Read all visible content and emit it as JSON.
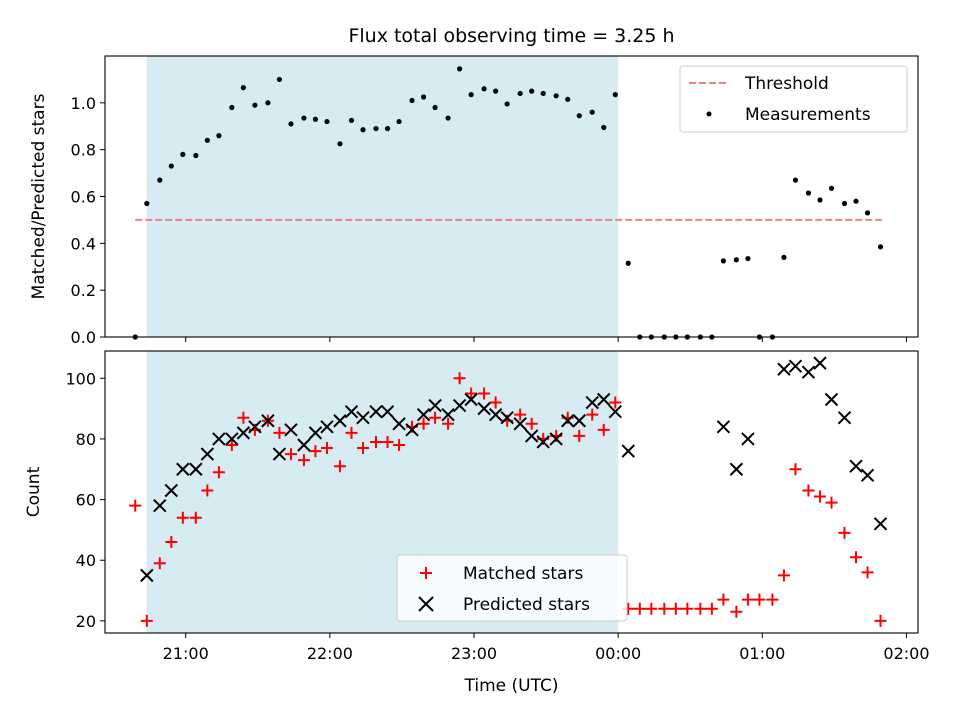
{
  "title": "Flux total observing time = 3.25 h",
  "x_axis_label": "Time (UTC)",
  "x_ticks": [
    {
      "t": 21.0,
      "label": "21:00"
    },
    {
      "t": 22.0,
      "label": "22:00"
    },
    {
      "t": 23.0,
      "label": "23:00"
    },
    {
      "t": 24.0,
      "label": "00:00"
    },
    {
      "t": 25.0,
      "label": "01:00"
    },
    {
      "t": 26.0,
      "label": "02:00"
    }
  ],
  "x_range": [
    20.44,
    26.08
  ],
  "chart_data": [
    {
      "type": "scatter",
      "panel": "top",
      "ylabel": "Matched/Predicted stars",
      "ylim": [
        0,
        1.2
      ],
      "yticks": [
        0.0,
        0.2,
        0.4,
        0.6,
        0.8,
        1.0
      ],
      "ytick_labels": [
        "0.0",
        "0.2",
        "0.4",
        "0.6",
        "0.8",
        "1.0"
      ],
      "observing_window": {
        "start": 20.73,
        "end": 24.0,
        "color": "#add8e6"
      },
      "threshold": {
        "name": "Threshold",
        "value": 0.5,
        "start": 20.65,
        "end": 25.83,
        "color": "#f08080"
      },
      "legend_position": "upper right",
      "series": [
        {
          "name": "Measurements",
          "color": "#000000",
          "x": [
            20.65,
            20.73,
            20.82,
            20.9,
            20.98,
            21.07,
            21.15,
            21.23,
            21.32,
            21.4,
            21.48,
            21.57,
            21.65,
            21.73,
            21.82,
            21.9,
            21.98,
            22.07,
            22.15,
            22.23,
            22.32,
            22.4,
            22.48,
            22.57,
            22.65,
            22.73,
            22.82,
            22.9,
            22.98,
            23.07,
            23.15,
            23.23,
            23.32,
            23.4,
            23.48,
            23.57,
            23.65,
            23.73,
            23.82,
            23.9,
            23.98,
            24.07,
            24.15,
            24.23,
            24.32,
            24.4,
            24.48,
            24.57,
            24.65,
            24.73,
            24.82,
            24.9,
            24.98,
            25.07,
            25.15,
            25.23,
            25.32,
            25.4,
            25.48,
            25.57,
            25.65,
            25.73,
            25.82
          ],
          "y": [
            0.0,
            0.57,
            0.67,
            0.73,
            0.78,
            0.775,
            0.84,
            0.86,
            0.98,
            1.065,
            0.99,
            1.0,
            1.1,
            0.91,
            0.935,
            0.93,
            0.92,
            0.825,
            0.925,
            0.885,
            0.89,
            0.89,
            0.92,
            1.01,
            1.025,
            0.98,
            0.935,
            1.145,
            1.035,
            1.06,
            1.05,
            0.995,
            1.04,
            1.05,
            1.04,
            1.03,
            1.015,
            0.945,
            0.96,
            0.895,
            1.035,
            0.315,
            0.0,
            0.0,
            0.0,
            0.0,
            0.0,
            0.0,
            0.0,
            0.325,
            0.33,
            0.335,
            0.0,
            0.0,
            0.34,
            0.67,
            0.615,
            0.585,
            0.635,
            0.57,
            0.58,
            0.53,
            0.385
          ]
        }
      ]
    },
    {
      "type": "scatter",
      "panel": "bottom",
      "ylabel": "Count",
      "ylim": [
        16,
        109
      ],
      "yticks": [
        20,
        40,
        60,
        80,
        100
      ],
      "ytick_labels": [
        "20",
        "40",
        "60",
        "80",
        "100"
      ],
      "observing_window": {
        "start": 20.73,
        "end": 24.0,
        "color": "#add8e6"
      },
      "legend_position": "lower center",
      "series": [
        {
          "name": "Matched stars",
          "marker": "plus",
          "color": "#ff0000",
          "x": [
            20.65,
            20.73,
            20.82,
            20.9,
            20.98,
            21.07,
            21.15,
            21.23,
            21.32,
            21.4,
            21.48,
            21.57,
            21.65,
            21.73,
            21.82,
            21.9,
            21.98,
            22.07,
            22.15,
            22.23,
            22.32,
            22.4,
            22.48,
            22.57,
            22.65,
            22.73,
            22.82,
            22.9,
            22.98,
            23.07,
            23.15,
            23.23,
            23.32,
            23.4,
            23.48,
            23.57,
            23.65,
            23.73,
            23.82,
            23.9,
            23.98,
            24.07,
            24.15,
            24.23,
            24.32,
            24.4,
            24.48,
            24.57,
            24.65,
            24.73,
            24.82,
            24.9,
            24.98,
            25.07,
            25.15,
            25.23,
            25.32,
            25.4,
            25.48,
            25.57,
            25.65,
            25.73,
            25.82
          ],
          "y": [
            58,
            20,
            39,
            46,
            54,
            54,
            63,
            69,
            78,
            87,
            83,
            86,
            82,
            75,
            73,
            76,
            77,
            71,
            82,
            77,
            79,
            79,
            78,
            84,
            85,
            87,
            85,
            100,
            95,
            95,
            92,
            86,
            88,
            85,
            80,
            81,
            87,
            81,
            88,
            83,
            92,
            24,
            24,
            24,
            24,
            24,
            24,
            24,
            24,
            27,
            23,
            27,
            27,
            27,
            35,
            70,
            63,
            61,
            59,
            49,
            41,
            36,
            20
          ]
        },
        {
          "name": "Predicted stars",
          "marker": "x",
          "color": "#000000",
          "x": [
            20.73,
            20.82,
            20.9,
            20.98,
            21.07,
            21.15,
            21.23,
            21.32,
            21.4,
            21.48,
            21.57,
            21.65,
            21.73,
            21.82,
            21.9,
            21.98,
            22.07,
            22.15,
            22.23,
            22.32,
            22.4,
            22.48,
            22.57,
            22.65,
            22.73,
            22.82,
            22.9,
            22.98,
            23.07,
            23.15,
            23.23,
            23.32,
            23.4,
            23.48,
            23.57,
            23.65,
            23.73,
            23.82,
            23.9,
            23.98,
            24.07,
            24.73,
            24.82,
            24.9,
            25.15,
            25.23,
            25.32,
            25.4,
            25.48,
            25.57,
            25.65,
            25.73,
            25.82
          ],
          "y": [
            35,
            58,
            63,
            70,
            70,
            75,
            80,
            80,
            82,
            84,
            86,
            75,
            83,
            78,
            82,
            84,
            86,
            89,
            87,
            89,
            89,
            85,
            83,
            88,
            91,
            88,
            91,
            93,
            90,
            88,
            87,
            85,
            81,
            79,
            80,
            86,
            86,
            92,
            93,
            89,
            76,
            84,
            70,
            80,
            103,
            104,
            102,
            105,
            93,
            87,
            71,
            68,
            52
          ]
        }
      ]
    }
  ]
}
